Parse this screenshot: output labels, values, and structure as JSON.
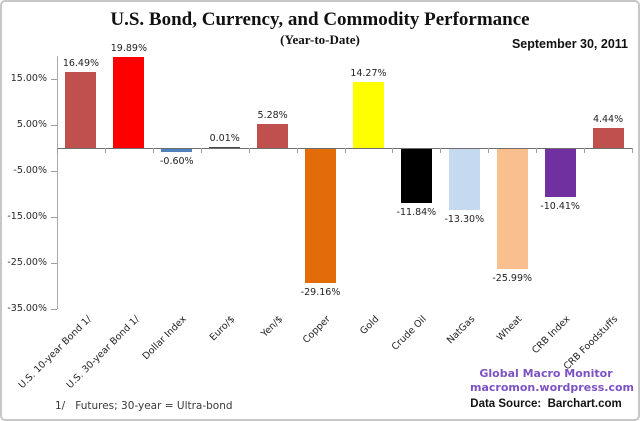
{
  "header": {
    "title": "U.S. Bond, Currency, and Commodity Performance",
    "subtitle": "(Year-to-Date)",
    "date": "September 30, 2011"
  },
  "chart_data": {
    "type": "bar",
    "title": "U.S. Bond, Currency, and Commodity Performance",
    "subtitle": "(Year-to-Date)",
    "date_annotation": "September 30, 2011",
    "categories": [
      "U.S. 10-year Bond 1/",
      "U.S. 30-year Bond 1/",
      "Dollar Index",
      "Euro/$",
      "Yen/$",
      "Copper",
      "Gold",
      "Crude Oil",
      "NatGas",
      "Wheat",
      "CRB Index",
      "CRB Foodstuffs"
    ],
    "values": [
      16.49,
      19.89,
      -0.6,
      0.01,
      5.28,
      -29.16,
      14.27,
      -11.84,
      -13.3,
      -25.99,
      -10.41,
      4.44
    ],
    "value_labels": [
      "16.49%",
      "19.89%",
      "-0.60%",
      "0.01%",
      "5.28%",
      "-29.16%",
      "14.27%",
      "-11.84%",
      "-13.30%",
      "-25.99%",
      "-10.41%",
      "4.44%"
    ],
    "bar_colors": [
      "#C0504D",
      "#FE0000",
      "#4F81BD",
      "#4A4A4A",
      "#C0504D",
      "#E36C0A",
      "#FFFF00",
      "#000000",
      "#C5D9F1",
      "#FABF8F",
      "#7030A0",
      "#C0504D"
    ],
    "y_ticks": [
      {
        "value": 15,
        "label": "15.00%"
      },
      {
        "value": 5,
        "label": "5.00%"
      },
      {
        "value": -5,
        "label": "-5.00%"
      },
      {
        "value": -15,
        "label": "-15.00%"
      },
      {
        "value": -25,
        "label": "-25.00%"
      },
      {
        "value": -35,
        "label": "-35.00%"
      }
    ],
    "ylim": [
      -35,
      20
    ],
    "grid": false,
    "legend": false,
    "bar_label_position": "outside-end",
    "category_label_rotation_deg": 45
  },
  "footer": {
    "footnote": "1/   Futures; 30-year = Ultra-bond",
    "credit_line1": "Global Macro Monitor",
    "credit_line2": "macromon.wordpress.com",
    "data_source": "Data Source:  Barchart.com"
  },
  "colors": {
    "credit_purple": "#7D52C2",
    "axis_line": "#ABABAB",
    "zero_line": "#6E6E6E",
    "tick": "#9E9E9E",
    "label_text": "#1F1F1F"
  }
}
